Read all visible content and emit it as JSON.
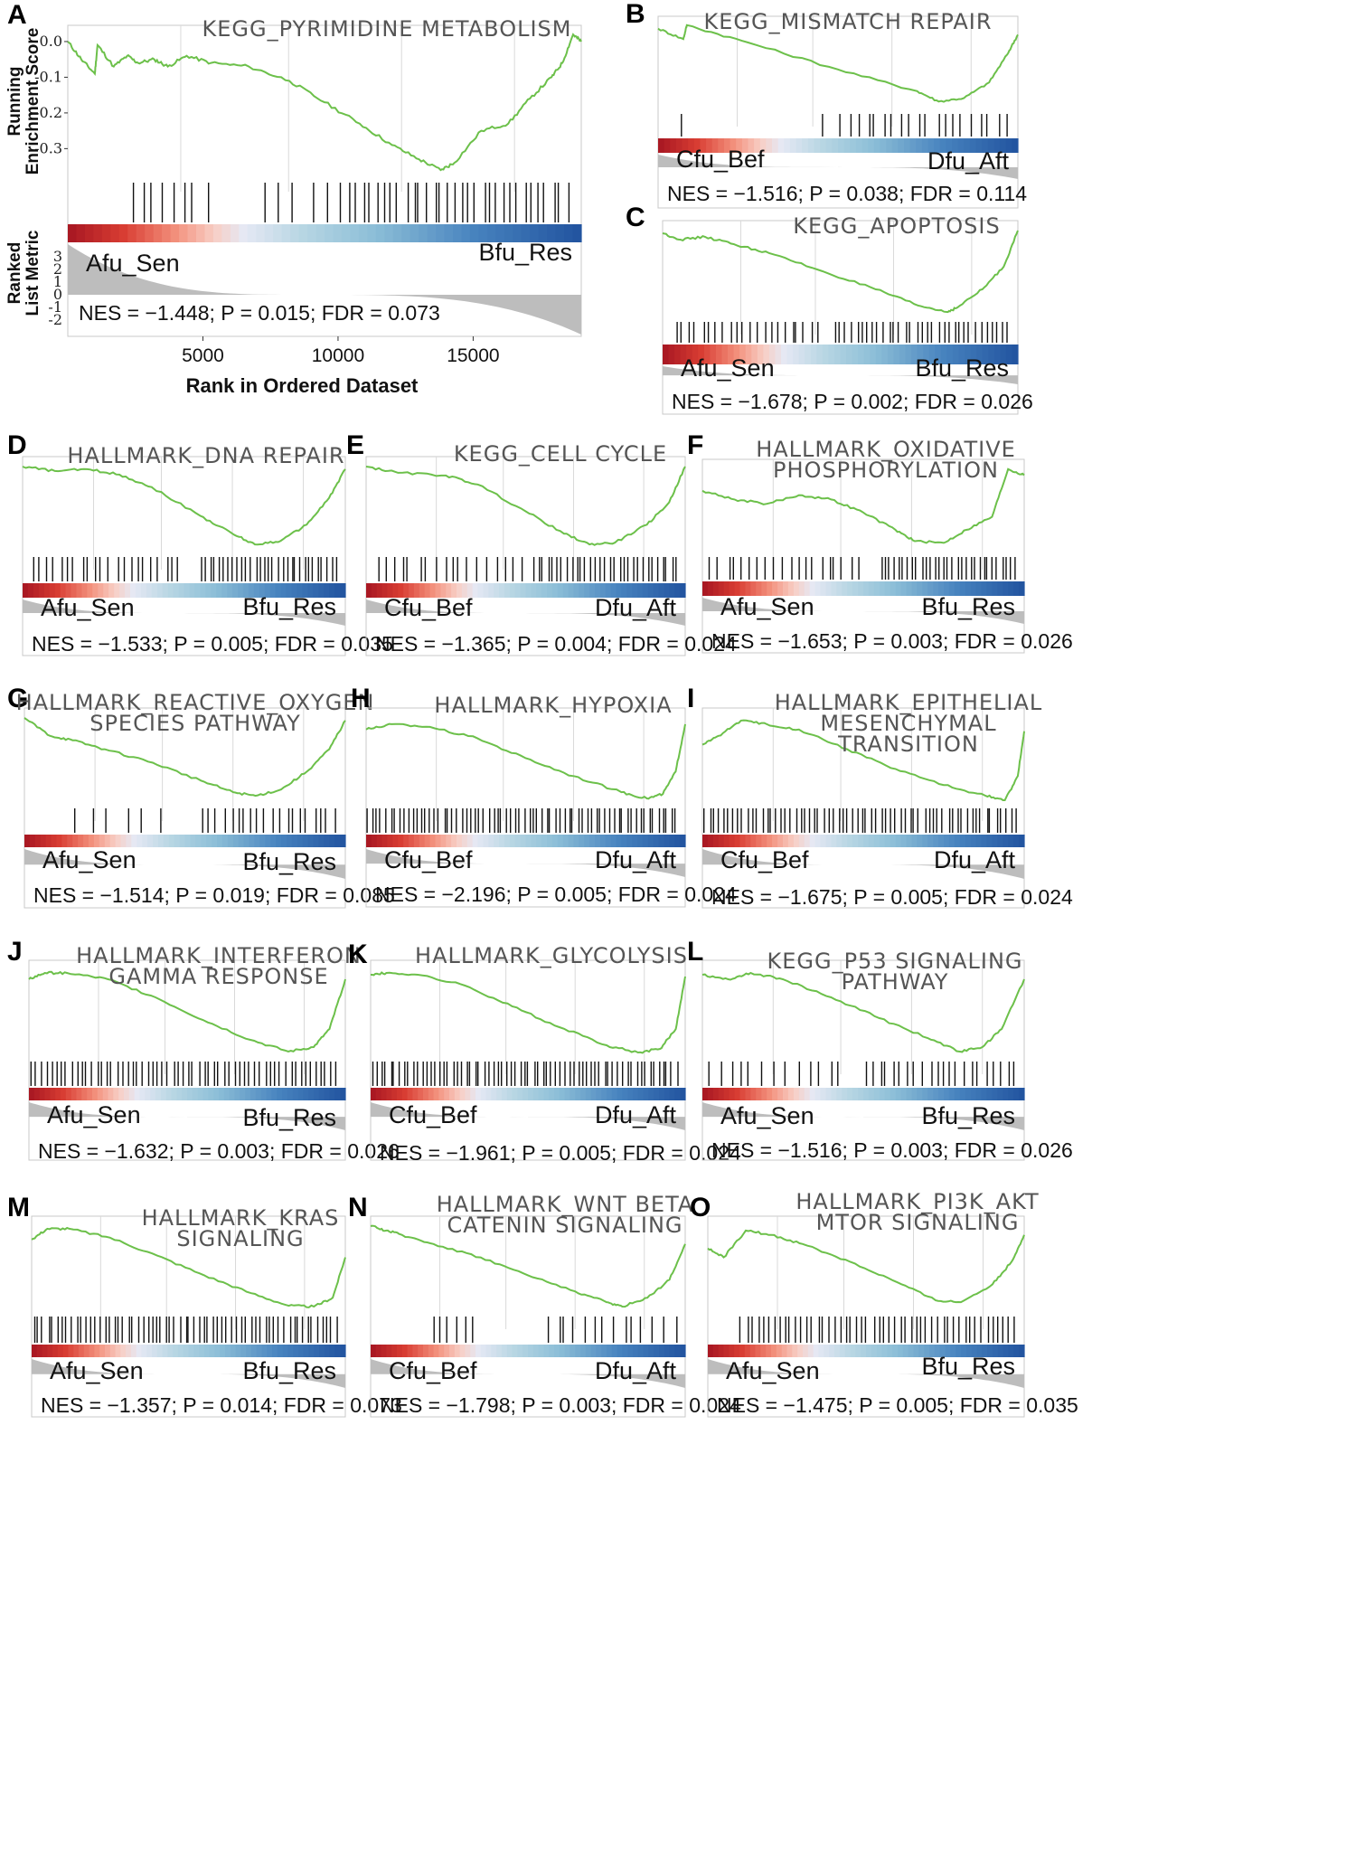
{
  "chart_data": [
    {
      "id": "A",
      "type": "line",
      "title": "KEGG_PYRIMIDINE METABOLISM",
      "ylabel": "Running Enrichment Score",
      "ylabel_lines": [
        "Running",
        "Enrichment Score"
      ],
      "yticks": [
        "0.0",
        "-0.1",
        "-0.2",
        "-0.3"
      ],
      "ylim": [
        -0.37,
        0.01
      ],
      "ranked_ylabel": "Ranked List Metric",
      "ranked_ylabel_lines": [
        "Ranked",
        "List Metric"
      ],
      "ranked_yticks": [
        "3",
        "2",
        "1",
        "0",
        "-1",
        "-2"
      ],
      "xlabel": "Rank in Ordered Dataset",
      "xticks": [
        "5000",
        "10000",
        "15000"
      ],
      "xlim": [
        0,
        19000
      ],
      "left_group": "Afu_Sen",
      "right_group": "Bfu_Res",
      "stats": "NES = −1.448; P = 0.015; FDR = 0.073",
      "series": [
        {
          "x": [
            0,
            500,
            1000,
            1100,
            1700,
            2200,
            2600,
            3200,
            3700,
            4400,
            5300,
            6700,
            8200,
            9500,
            10800,
            12000,
            13000,
            13800,
            14300,
            15300,
            16300,
            17100,
            17900,
            18300,
            18700,
            19000
          ],
          "values": [
            0.0,
            -0.05,
            -0.09,
            -0.01,
            -0.07,
            -0.04,
            -0.06,
            -0.05,
            -0.07,
            -0.04,
            -0.06,
            -0.07,
            -0.11,
            -0.17,
            -0.23,
            -0.29,
            -0.33,
            -0.36,
            -0.34,
            -0.25,
            -0.23,
            -0.16,
            -0.1,
            -0.06,
            0.02,
            0.0
          ]
        }
      ]
    },
    {
      "id": "B",
      "type": "line",
      "title": "KEGG_MISMATCH REPAIR",
      "left_group": "Cfu_Bef",
      "right_group": "Dfu_Aft",
      "stats": "NES = −1.516; P = 0.038; FDR = 0.114",
      "series": [
        {
          "x": [
            0,
            0.07,
            0.08,
            0.25,
            0.5,
            0.72,
            0.78,
            0.85,
            0.92,
            0.97,
            1.0
          ],
          "values": [
            0.92,
            0.8,
            0.96,
            0.76,
            0.45,
            0.2,
            0.08,
            0.12,
            0.3,
            0.62,
            0.85
          ]
        }
      ]
    },
    {
      "id": "C",
      "type": "line",
      "title": "KEGG_APOPTOSIS",
      "left_group": "Afu_Sen",
      "right_group": "Bfu_Res",
      "stats": "NES = −1.678; P = 0.002; FDR = 0.026",
      "series": [
        {
          "x": [
            0,
            0.05,
            0.12,
            0.2,
            0.3,
            0.45,
            0.6,
            0.72,
            0.8,
            0.83,
            0.9,
            0.96,
            1.0
          ],
          "values": [
            0.92,
            0.85,
            0.88,
            0.8,
            0.7,
            0.5,
            0.3,
            0.12,
            0.05,
            0.1,
            0.3,
            0.55,
            0.95
          ]
        }
      ]
    },
    {
      "id": "D",
      "type": "line",
      "title": "HALLMARK_DNA REPAIR",
      "left_group": "Afu_Sen",
      "right_group": "Bfu_Res",
      "stats": "NES = −1.533; P = 0.005; FDR = 0.035",
      "series": [
        {
          "x": [
            0,
            0.1,
            0.2,
            0.3,
            0.4,
            0.55,
            0.65,
            0.72,
            0.8,
            0.88,
            0.95,
            1.0
          ],
          "values": [
            0.95,
            0.9,
            0.92,
            0.86,
            0.72,
            0.4,
            0.2,
            0.08,
            0.12,
            0.3,
            0.6,
            0.92
          ]
        }
      ]
    },
    {
      "id": "E",
      "type": "line",
      "title": "KEGG_CELL CYCLE",
      "left_group": "Cfu_Bef",
      "right_group": "Dfu_Aft",
      "stats": "NES = −1.365; P = 0.004; FDR = 0.024",
      "series": [
        {
          "x": [
            0,
            0.1,
            0.25,
            0.35,
            0.5,
            0.62,
            0.7,
            0.78,
            0.88,
            0.95,
            1.0
          ],
          "values": [
            0.95,
            0.88,
            0.85,
            0.75,
            0.45,
            0.2,
            0.08,
            0.1,
            0.3,
            0.55,
            0.95
          ]
        }
      ]
    },
    {
      "id": "F",
      "type": "line",
      "title": "HALLMARK_OXIDATIVE PHOSPHORYLATION",
      "title_lines": [
        "HALLMARK_OXIDATIVE",
        "PHOSPHORYLATION"
      ],
      "left_group": "Afu_Sen",
      "right_group": "Bfu_Res",
      "stats": "NES = −1.653; P = 0.003; FDR = 0.026",
      "series": [
        {
          "x": [
            0,
            0.1,
            0.2,
            0.3,
            0.4,
            0.5,
            0.6,
            0.66,
            0.75,
            0.82,
            0.9,
            0.95,
            1.0
          ],
          "values": [
            0.7,
            0.6,
            0.55,
            0.65,
            0.6,
            0.45,
            0.25,
            0.12,
            0.1,
            0.25,
            0.4,
            0.95,
            0.88
          ]
        }
      ]
    },
    {
      "id": "G",
      "type": "line",
      "title": "HALLMARK_REACTIVE_OXYGEN SPECIES PATHWAY",
      "title_lines": [
        "HALLMARK_REACTIVE_OXYGEN",
        "SPECIES PATHWAY"
      ],
      "left_group": "Afu_Sen",
      "right_group": "Bfu_Res",
      "stats": "NES = −1.514; P = 0.019; FDR = 0.085",
      "series": [
        {
          "x": [
            0,
            0.08,
            0.15,
            0.25,
            0.4,
            0.55,
            0.65,
            0.72,
            0.8,
            0.88,
            0.95,
            1.0
          ],
          "values": [
            0.95,
            0.75,
            0.7,
            0.6,
            0.45,
            0.25,
            0.12,
            0.08,
            0.15,
            0.35,
            0.6,
            0.92
          ]
        }
      ]
    },
    {
      "id": "H",
      "type": "line",
      "title": "HALLMARK_HYPOXIA",
      "left_group": "Cfu_Bef",
      "right_group": "Dfu_Aft",
      "stats": "NES = −2.196; P = 0.005; FDR = 0.024",
      "series": [
        {
          "x": [
            0,
            0.08,
            0.2,
            0.35,
            0.5,
            0.65,
            0.8,
            0.88,
            0.93,
            0.97,
            1.0
          ],
          "values": [
            0.82,
            0.88,
            0.85,
            0.72,
            0.5,
            0.3,
            0.12,
            0.05,
            0.1,
            0.35,
            0.88
          ]
        }
      ]
    },
    {
      "id": "I",
      "type": "line",
      "title": "HALLMARK_EPITHELIAL MESENCHYMAL TRANSITION",
      "title_lines": [
        "HALLMARK_EPITHELIAL",
        "MESENCHYMAL",
        "TRANSITION"
      ],
      "left_group": "Cfu_Bef",
      "right_group": "Dfu_Aft",
      "stats": "NES = −1.675; P = 0.005; FDR = 0.024",
      "series": [
        {
          "x": [
            0,
            0.05,
            0.12,
            0.2,
            0.3,
            0.45,
            0.6,
            0.75,
            0.88,
            0.94,
            0.98,
            1.0
          ],
          "values": [
            0.65,
            0.75,
            0.92,
            0.88,
            0.82,
            0.6,
            0.38,
            0.2,
            0.08,
            0.03,
            0.3,
            0.8
          ]
        }
      ]
    },
    {
      "id": "J",
      "type": "line",
      "title": "HALLMARK_INTERFERON GAMMA RESPONSE",
      "title_lines": [
        "HALLMARK_INTERFERON",
        "GAMMA RESPONSE"
      ],
      "left_group": "Afu_Sen",
      "right_group": "Bfu_Res",
      "stats": "NES = −1.632; P = 0.003; FDR = 0.026",
      "series": [
        {
          "x": [
            0,
            0.05,
            0.12,
            0.25,
            0.4,
            0.55,
            0.7,
            0.82,
            0.9,
            0.95,
            1.0
          ],
          "values": [
            0.85,
            0.92,
            0.92,
            0.85,
            0.65,
            0.4,
            0.18,
            0.05,
            0.1,
            0.3,
            0.85
          ]
        }
      ]
    },
    {
      "id": "K",
      "type": "line",
      "title": "HALLMARK_GLYCOLYSIS",
      "left_group": "Cfu_Bef",
      "right_group": "Dfu_Aft",
      "stats": "NES = −1.961; P = 0.005; FDR = 0.024",
      "series": [
        {
          "x": [
            0,
            0.05,
            0.15,
            0.3,
            0.45,
            0.6,
            0.75,
            0.85,
            0.92,
            0.97,
            1.0
          ],
          "values": [
            0.9,
            0.92,
            0.9,
            0.78,
            0.55,
            0.32,
            0.12,
            0.04,
            0.08,
            0.3,
            0.88
          ]
        }
      ]
    },
    {
      "id": "L",
      "type": "line",
      "title": "KEGG_P53 SIGNALING PATHWAY",
      "title_lines": [
        "KEGG_P53 SIGNALING",
        "PATHWAY"
      ],
      "left_group": "Afu_Sen",
      "right_group": "Bfu_Res",
      "stats": "NES = −1.516; P = 0.003; FDR = 0.026",
      "series": [
        {
          "x": [
            0,
            0.08,
            0.15,
            0.25,
            0.4,
            0.55,
            0.7,
            0.8,
            0.87,
            0.93,
            1.0
          ],
          "values": [
            0.9,
            0.85,
            0.92,
            0.85,
            0.65,
            0.42,
            0.2,
            0.05,
            0.1,
            0.3,
            0.85
          ]
        }
      ]
    },
    {
      "id": "M",
      "type": "line",
      "title": "HALLMARK_KRAS SIGNALING",
      "title_lines": [
        "HALLMARK_KRAS",
        "SIGNALING"
      ],
      "left_group": "Afu_Sen",
      "right_group": "Bfu_Res",
      "stats": "NES = −1.357; P = 0.014; FDR = 0.073",
      "series": [
        {
          "x": [
            0,
            0.05,
            0.12,
            0.25,
            0.4,
            0.55,
            0.7,
            0.82,
            0.9,
            0.96,
            1.0
          ],
          "values": [
            0.8,
            0.92,
            0.92,
            0.82,
            0.62,
            0.4,
            0.2,
            0.06,
            0.05,
            0.15,
            0.6
          ]
        }
      ]
    },
    {
      "id": "N",
      "type": "line",
      "title": "HALLMARK_WNT BETA CATENIN SIGNALING",
      "title_lines": [
        "HALLMARK_WNT BETA",
        "CATENIN SIGNALING"
      ],
      "left_group": "Cfu_Bef",
      "right_group": "Dfu_Aft",
      "stats": "NES = −1.798; P = 0.003; FDR = 0.024",
      "series": [
        {
          "x": [
            0,
            0.05,
            0.1,
            0.2,
            0.35,
            0.5,
            0.65,
            0.75,
            0.8,
            0.88,
            0.95,
            1.0
          ],
          "values": [
            0.95,
            0.9,
            0.85,
            0.75,
            0.6,
            0.4,
            0.22,
            0.1,
            0.05,
            0.15,
            0.35,
            0.75
          ]
        }
      ]
    },
    {
      "id": "O",
      "type": "line",
      "title": "HALLMARK_PI3K_AKT MTOR SIGNALING",
      "title_lines": [
        "HALLMARK_PI3K_AKT",
        "MTOR SIGNALING"
      ],
      "left_group": "Afu_Sen",
      "right_group": "Bfu_Res",
      "stats": "NES = −1.475; P = 0.005; FDR = 0.035",
      "series": [
        {
          "x": [
            0,
            0.05,
            0.12,
            0.2,
            0.3,
            0.45,
            0.6,
            0.72,
            0.8,
            0.9,
            0.96,
            1.0
          ],
          "values": [
            0.7,
            0.6,
            0.9,
            0.85,
            0.75,
            0.55,
            0.32,
            0.12,
            0.1,
            0.3,
            0.55,
            0.85
          ]
        }
      ]
    }
  ],
  "colors": {
    "enrichment_line": "#6cc04a",
    "hit_line": "#111111",
    "heat_left": "#c8262f",
    "heat_mid": "#e6e8f3",
    "heat_right": "#2a63a6",
    "ranked_area": "#bdbdbd",
    "grid": "#d9d9d9",
    "title_text": "#555555"
  }
}
